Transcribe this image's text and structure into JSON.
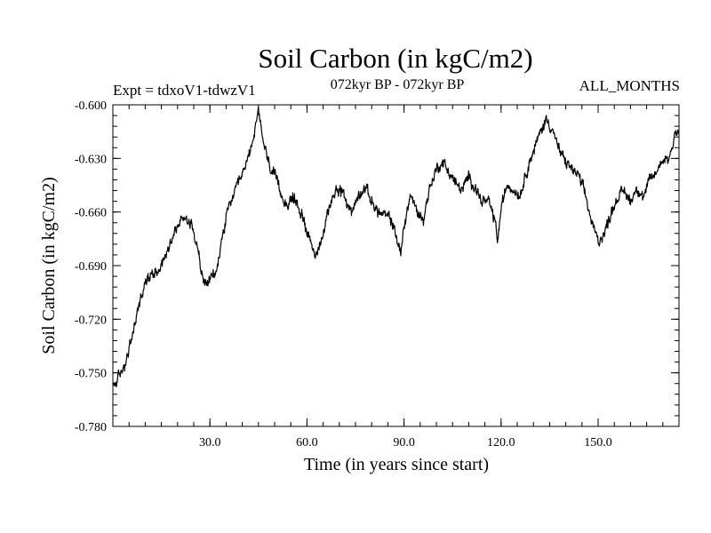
{
  "chart_data": {
    "type": "line",
    "title": "Soil Carbon (in kgC/m2)",
    "subtitle_left": "Expt = tdxoV1-tdwzV1",
    "subtitle_center": "072kyr BP - 072kyr BP",
    "subtitle_right": "ALL_MONTHS",
    "xlabel": "Time (in years since start)",
    "ylabel": "Soil Carbon (in kgC/m2)",
    "xlim": [
      0,
      175
    ],
    "ylim": [
      -0.78,
      -0.6
    ],
    "x_ticks": [
      30,
      60,
      90,
      120,
      150
    ],
    "x_tick_labels": [
      "30.0",
      "60.0",
      "90.0",
      "120.0",
      "150.0"
    ],
    "y_ticks": [
      -0.6,
      -0.63,
      -0.66,
      -0.69,
      -0.72,
      -0.75,
      -0.78
    ],
    "y_tick_labels": [
      "-0.600",
      "-0.630",
      "-0.660",
      "-0.690",
      "-0.720",
      "-0.750",
      "-0.780"
    ],
    "grid": false,
    "series": [
      {
        "name": "Soil Carbon",
        "color": "#000000",
        "x": [
          0,
          2,
          4,
          6,
          8,
          10,
          12,
          14,
          16,
          18,
          20,
          22,
          24,
          26,
          27,
          28,
          30,
          32,
          34,
          36,
          38,
          40,
          42,
          44,
          45,
          46,
          48,
          50,
          52,
          54,
          56,
          58,
          60,
          62,
          63,
          64,
          66,
          68,
          70,
          72,
          74,
          76,
          78,
          80,
          82,
          84,
          86,
          88,
          89,
          90,
          92,
          94,
          96,
          98,
          100,
          102,
          104,
          106,
          108,
          110,
          112,
          114,
          116,
          118,
          119,
          120,
          122,
          124,
          126,
          128,
          130,
          132,
          134,
          136,
          138,
          140,
          142,
          144,
          146,
          148,
          150,
          152,
          154,
          156,
          158,
          160,
          162,
          164,
          166,
          168,
          170,
          172,
          174,
          175
        ],
        "y": [
          -0.758,
          -0.752,
          -0.744,
          -0.73,
          -0.712,
          -0.7,
          -0.694,
          -0.692,
          -0.686,
          -0.675,
          -0.668,
          -0.662,
          -0.666,
          -0.676,
          -0.69,
          -0.7,
          -0.698,
          -0.694,
          -0.672,
          -0.656,
          -0.648,
          -0.64,
          -0.628,
          -0.614,
          -0.604,
          -0.616,
          -0.632,
          -0.64,
          -0.65,
          -0.656,
          -0.652,
          -0.66,
          -0.67,
          -0.68,
          -0.686,
          -0.68,
          -0.664,
          -0.65,
          -0.646,
          -0.654,
          -0.66,
          -0.65,
          -0.646,
          -0.654,
          -0.66,
          -0.662,
          -0.664,
          -0.676,
          -0.684,
          -0.668,
          -0.65,
          -0.66,
          -0.664,
          -0.646,
          -0.636,
          -0.632,
          -0.638,
          -0.644,
          -0.648,
          -0.64,
          -0.646,
          -0.654,
          -0.654,
          -0.664,
          -0.676,
          -0.658,
          -0.644,
          -0.648,
          -0.65,
          -0.636,
          -0.626,
          -0.616,
          -0.608,
          -0.614,
          -0.626,
          -0.632,
          -0.636,
          -0.64,
          -0.65,
          -0.666,
          -0.676,
          -0.672,
          -0.66,
          -0.652,
          -0.648,
          -0.654,
          -0.646,
          -0.652,
          -0.642,
          -0.638,
          -0.63,
          -0.63,
          -0.614,
          -0.616
        ]
      }
    ]
  }
}
